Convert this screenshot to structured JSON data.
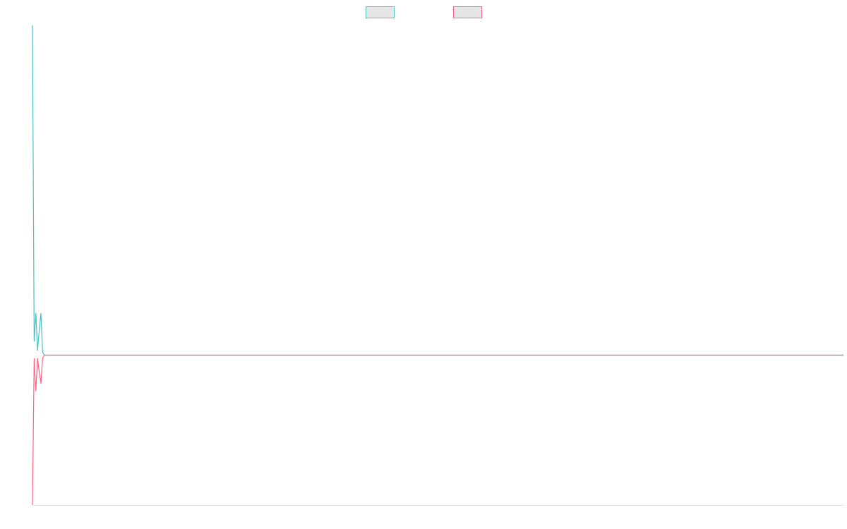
{
  "chart_data": {
    "type": "line",
    "x": [
      0,
      1,
      2,
      3,
      4,
      5,
      6,
      7,
      480
    ],
    "xlim": [
      0,
      480
    ],
    "ylim": [
      -1,
      2.2
    ],
    "grid": false,
    "legend": "top",
    "series": [
      {
        "color": "#4bc0c0",
        "values": [
          2.2,
          0.09,
          0.28,
          0.03,
          0.16,
          0.28,
          0.02,
          0,
          0
        ]
      },
      {
        "color": "#ff6384",
        "values": [
          -1,
          -0.02,
          -0.24,
          -0.02,
          -0.11,
          -0.19,
          -0.02,
          0,
          0
        ]
      }
    ]
  }
}
